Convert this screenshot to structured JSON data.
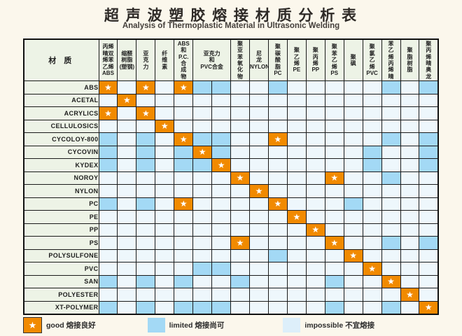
{
  "title": "超 声 波 塑 胶 熔 接 材 质 分 析 表",
  "subtitle": "Analysis of Thermoplastic Material in Ultrasonic Welding",
  "corner_label": "材 质",
  "legend": [
    {
      "key": "G",
      "label": "good 熔接良好"
    },
    {
      "key": "L",
      "label": "limited 熔接尚可"
    },
    {
      "key": "-",
      "label": "impossible 不宜熔接"
    }
  ],
  "colors": {
    "good": "#f18a00",
    "limited": "#a3d9f5",
    "impossible": "#eef7fc",
    "header_bg": "#edf3e6",
    "grid": "#1b1b1b",
    "page_bg": "#fbf7ec"
  },
  "chart_data": {
    "type": "table",
    "title": "超 声 波 塑 胶 熔 接 材 质 分 析 表",
    "subtitle": "Analysis of Thermoplastic Material in Ultrasonic Welding",
    "cell_legend": {
      "G": "good 熔接良好",
      "L": "limited 熔接尚可",
      "-": "impossible 不宜熔接"
    },
    "col_headers": [
      {
        "text": "丙烯\n晴双\n烯苯\n乙烯\nABS",
        "span": 1
      },
      {
        "text": "缩醛\n树脂\n(塑钢)",
        "span": 1
      },
      {
        "text": "亚\n克\n力",
        "span": 1
      },
      {
        "text": "纤\n维\n素",
        "span": 1
      },
      {
        "text": "ABS\n和\nP.C.\n合\n成\n物",
        "span": 1
      },
      {
        "text": "亚克力\n和\nPVC合金",
        "span": 2
      },
      {
        "text": "聚\n亚\n苯\n氧\n化\n物",
        "span": 1
      },
      {
        "text": "尼\n龙\nNYLON",
        "span": 1
      },
      {
        "text": "聚\n碳\n酸\n脂\nPC",
        "span": 1
      },
      {
        "text": "聚\n乙\n烯\nPE",
        "span": 1
      },
      {
        "text": "聚\n丙\n烯\nPP",
        "span": 1
      },
      {
        "text": "聚\n苯\n乙\n烯\nPS",
        "span": 1
      },
      {
        "text": "聚\n砜",
        "span": 1
      },
      {
        "text": "聚\n氯\n乙\n烯\nPVC",
        "span": 1
      },
      {
        "text": "苯\n乙\n烯\n丙\n烯\n晴",
        "span": 1
      },
      {
        "text": "聚\n脂\n树\n脂",
        "span": 1
      },
      {
        "text": "聚\n丙\n烯\n晴\n奥\n龙",
        "span": 1
      }
    ],
    "rows": [
      {
        "label": "ABS",
        "cells": [
          "G",
          "-",
          "G",
          "-",
          "G",
          "L",
          "L",
          "-",
          "-",
          "L",
          "-",
          "-",
          "-",
          "-",
          "-",
          "L",
          "-",
          "L"
        ]
      },
      {
        "label": "ACETAL",
        "cells": [
          "-",
          "G",
          "-",
          "-",
          "-",
          "-",
          "-",
          "-",
          "-",
          "-",
          "-",
          "-",
          "-",
          "-",
          "-",
          "-",
          "-",
          "-"
        ]
      },
      {
        "label": "ACRYLICS",
        "cells": [
          "G",
          "-",
          "G",
          "-",
          "-",
          "-",
          "-",
          "-",
          "-",
          "-",
          "-",
          "-",
          "-",
          "-",
          "-",
          "-",
          "-",
          "-"
        ]
      },
      {
        "label": "CELLULOSICS",
        "cells": [
          "-",
          "-",
          "-",
          "G",
          "-",
          "-",
          "-",
          "-",
          "-",
          "-",
          "-",
          "-",
          "-",
          "-",
          "-",
          "-",
          "-",
          "-"
        ]
      },
      {
        "label": "CYCOLOY-800",
        "cells": [
          "L",
          "-",
          "L",
          "-",
          "G",
          "L",
          "L",
          "-",
          "-",
          "G",
          "-",
          "-",
          "-",
          "-",
          "-",
          "L",
          "-",
          "L"
        ]
      },
      {
        "label": "CYCOVIN",
        "cells": [
          "L",
          "-",
          "L",
          "-",
          "L",
          "G",
          "L",
          "-",
          "-",
          "-",
          "-",
          "-",
          "-",
          "-",
          "L",
          "-",
          "-",
          "L"
        ]
      },
      {
        "label": "KYDEX",
        "cells": [
          "L",
          "-",
          "L",
          "-",
          "L",
          "L",
          "G",
          "-",
          "-",
          "-",
          "-",
          "-",
          "-",
          "-",
          "L",
          "-",
          "-",
          "L"
        ]
      },
      {
        "label": "NOROY",
        "cells": [
          "-",
          "-",
          "-",
          "-",
          "-",
          "-",
          "-",
          "G",
          "-",
          "-",
          "-",
          "-",
          "G",
          "-",
          "-",
          "L",
          "-",
          "-"
        ]
      },
      {
        "label": "NYLON",
        "cells": [
          "-",
          "-",
          "-",
          "-",
          "-",
          "-",
          "-",
          "-",
          "G",
          "-",
          "-",
          "-",
          "-",
          "-",
          "-",
          "-",
          "-",
          "-"
        ]
      },
      {
        "label": "PC",
        "cells": [
          "L",
          "-",
          "L",
          "-",
          "G",
          "-",
          "-",
          "-",
          "-",
          "G",
          "-",
          "-",
          "-",
          "L",
          "-",
          "-",
          "-",
          "-"
        ]
      },
      {
        "label": "PE",
        "cells": [
          "-",
          "-",
          "-",
          "-",
          "-",
          "-",
          "-",
          "-",
          "-",
          "-",
          "G",
          "-",
          "-",
          "-",
          "-",
          "-",
          "-",
          "-"
        ]
      },
      {
        "label": "PP",
        "cells": [
          "-",
          "-",
          "-",
          "-",
          "-",
          "-",
          "-",
          "-",
          "-",
          "-",
          "-",
          "G",
          "-",
          "-",
          "-",
          "-",
          "-",
          "-"
        ]
      },
      {
        "label": "PS",
        "cells": [
          "-",
          "-",
          "-",
          "-",
          "-",
          "-",
          "-",
          "G",
          "-",
          "-",
          "-",
          "-",
          "G",
          "-",
          "-",
          "L",
          "-",
          "L"
        ]
      },
      {
        "label": "POLYSULFONE",
        "cells": [
          "-",
          "-",
          "-",
          "-",
          "-",
          "-",
          "-",
          "-",
          "-",
          "L",
          "-",
          "-",
          "-",
          "G",
          "-",
          "-",
          "-",
          "-"
        ]
      },
      {
        "label": "PVC",
        "cells": [
          "-",
          "-",
          "-",
          "-",
          "-",
          "L",
          "L",
          "-",
          "-",
          "-",
          "-",
          "-",
          "-",
          "-",
          "G",
          "-",
          "-",
          "-"
        ]
      },
      {
        "label": "SAN",
        "cells": [
          "L",
          "-",
          "L",
          "-",
          "L",
          "-",
          "-",
          "L",
          "-",
          "-",
          "-",
          "-",
          "L",
          "-",
          "-",
          "G",
          "-",
          "-"
        ]
      },
      {
        "label": "POLYESTER",
        "cells": [
          "-",
          "-",
          "-",
          "-",
          "-",
          "-",
          "-",
          "-",
          "-",
          "-",
          "-",
          "-",
          "-",
          "-",
          "-",
          "-",
          "G",
          "-"
        ]
      },
      {
        "label": "XT-POLYMER",
        "cells": [
          "L",
          "-",
          "L",
          "-",
          "L",
          "L",
          "L",
          "-",
          "-",
          "-",
          "-",
          "-",
          "L",
          "-",
          "-",
          "L",
          "-",
          "G"
        ]
      }
    ],
    "star_glyph": "★",
    "layout": {
      "grid": true,
      "legend_position": "bottom",
      "header_orientation": "vertical"
    }
  }
}
